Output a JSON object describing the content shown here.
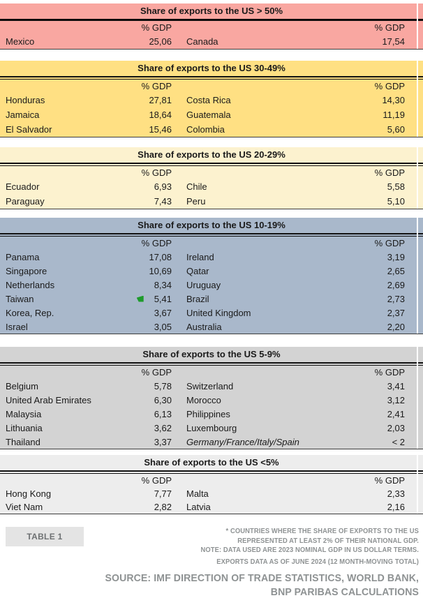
{
  "colors": {
    "band_gt50": "#F9A7A1",
    "band_30_49": "#FFE083",
    "band_20_29": "#FCF2CF",
    "band_10_19": "#A9B8CB",
    "band_5_9": "#D3D3D3",
    "band_lt5": "#EDEDED",
    "footer_text": "#8E9293",
    "badge_bg": "#E4E4E4",
    "flag_green": "#1E9B2C"
  },
  "sections": [
    {
      "title": "Share of exports to the US > 50%",
      "color": "#F9A7A1",
      "divider": "single",
      "col_header": "% GDP",
      "rows": [
        {
          "country1": "Mexico",
          "value1": "25,06",
          "country2": "Canada",
          "value2": "17,54"
        }
      ]
    },
    {
      "title": "Share of exports to the US 30-49%",
      "color": "#FFE083",
      "divider": "double",
      "col_header": "% GDP",
      "rows": [
        {
          "country1": "Honduras",
          "value1": "27,81",
          "country2": "Costa Rica",
          "value2": "14,30"
        },
        {
          "country1": "Jamaica",
          "value1": "18,64",
          "country2": "Guatemala",
          "value2": "11,19"
        },
        {
          "country1": "El Salvador",
          "value1": "15,46",
          "country2": "Colombia",
          "value2": "5,60"
        }
      ]
    },
    {
      "title": "Share of exports to the US 20-29%",
      "color": "#FCF2CF",
      "divider": "double",
      "col_header": "% GDP",
      "rows": [
        {
          "country1": "Ecuador",
          "value1": "6,93",
          "country2": "Chile",
          "value2": "5,58"
        },
        {
          "country1": "Paraguay",
          "value1": "7,43",
          "country2": "Peru",
          "value2": "5,10"
        }
      ]
    },
    {
      "title": "Share of exports to the US 10-19%",
      "color": "#A9B8CB",
      "divider": "double",
      "col_header": "% GDP",
      "rows": [
        {
          "country1": "Panama",
          "value1": "17,08",
          "country2": "Ireland",
          "value2": "3,19"
        },
        {
          "country1": "Singapore",
          "value1": "10,69",
          "country2": "Qatar",
          "value2": "2,65"
        },
        {
          "country1": "Netherlands",
          "value1": "8,34",
          "country2": "Uruguay",
          "value2": "2,69"
        },
        {
          "country1": "Taiwan",
          "value1": "5,41",
          "country2": "Brazil",
          "value2": "2,73",
          "flag1": true
        },
        {
          "country1": "Korea, Rep.",
          "value1": "3,67",
          "country2": "United Kingdom",
          "value2": "2,37"
        },
        {
          "country1": "Israel",
          "value1": "3,05",
          "country2": "Australia",
          "value2": "2,20"
        }
      ]
    },
    {
      "title": "Share of exports to the US 5-9%",
      "color": "#D3D3D3",
      "divider": "double",
      "col_header": "% GDP",
      "rows": [
        {
          "country1": "Belgium",
          "value1": "5,78",
          "country2": "Switzerland",
          "value2": "3,41"
        },
        {
          "country1": "United Arab Emirates",
          "value1": "6,30",
          "country2": "Morocco",
          "value2": "3,12"
        },
        {
          "country1": "Malaysia",
          "value1": "6,13",
          "country2": "Philippines",
          "value2": "2,41"
        },
        {
          "country1": "Lithuania",
          "value1": "3,62",
          "country2": "Luxembourg",
          "value2": "2,03"
        },
        {
          "country1": "Thailand",
          "value1": "3,37",
          "country2": "Germany/France/Italy/Spain",
          "value2": "< 2",
          "italic2": true
        }
      ]
    },
    {
      "title": "Share of exports to the US <5%",
      "color": "#EDEDED",
      "divider": "double",
      "col_header": "% GDP",
      "rows": [
        {
          "country1": "Hong Kong",
          "value1": "7,77",
          "country2": "Malta",
          "value2": "2,33"
        },
        {
          "country1": "Viet Nam",
          "value1": "2,82",
          "country2": "Latvia",
          "value2": "2,16"
        }
      ]
    }
  ],
  "footer": {
    "table_label": "TABLE 1",
    "notes": [
      "* COUNTRIES WHERE THE SHARE OF EXPORTS TO THE US",
      "REPRESENTED AT LEAST 2% OF THEIR NATIONAL GDP.",
      "NOTE: DATA USED ARE 2023 NOMINAL GDP IN US DOLLAR TERMS.",
      "EXPORTS DATA AS OF JUNE 2024 (12 MONTH-MOVING TOTAL)"
    ],
    "source_lines": [
      "SOURCE: IMF DIRECTION OF TRADE STATISTICS, WORLD BANK,",
      "BNP PARIBAS CALCULATIONS"
    ]
  },
  "chart_data": {
    "type": "table",
    "title": "Share of exports to the US by band",
    "unit": "% GDP",
    "bands": [
      {
        "band": "> 50%",
        "entries": [
          {
            "country": "Mexico",
            "value": 25.06
          },
          {
            "country": "Canada",
            "value": 17.54
          }
        ]
      },
      {
        "band": "30-49%",
        "entries": [
          {
            "country": "Honduras",
            "value": 27.81
          },
          {
            "country": "Costa Rica",
            "value": 14.3
          },
          {
            "country": "Jamaica",
            "value": 18.64
          },
          {
            "country": "Guatemala",
            "value": 11.19
          },
          {
            "country": "El Salvador",
            "value": 15.46
          },
          {
            "country": "Colombia",
            "value": 5.6
          }
        ]
      },
      {
        "band": "20-29%",
        "entries": [
          {
            "country": "Ecuador",
            "value": 6.93
          },
          {
            "country": "Chile",
            "value": 5.58
          },
          {
            "country": "Paraguay",
            "value": 7.43
          },
          {
            "country": "Peru",
            "value": 5.1
          }
        ]
      },
      {
        "band": "10-19%",
        "entries": [
          {
            "country": "Panama",
            "value": 17.08
          },
          {
            "country": "Ireland",
            "value": 3.19
          },
          {
            "country": "Singapore",
            "value": 10.69
          },
          {
            "country": "Qatar",
            "value": 2.65
          },
          {
            "country": "Netherlands",
            "value": 8.34
          },
          {
            "country": "Uruguay",
            "value": 2.69
          },
          {
            "country": "Taiwan",
            "value": 5.41
          },
          {
            "country": "Brazil",
            "value": 2.73
          },
          {
            "country": "Korea, Rep.",
            "value": 3.67
          },
          {
            "country": "United Kingdom",
            "value": 2.37
          },
          {
            "country": "Israel",
            "value": 3.05
          },
          {
            "country": "Australia",
            "value": 2.2
          }
        ]
      },
      {
        "band": "5-9%",
        "entries": [
          {
            "country": "Belgium",
            "value": 5.78
          },
          {
            "country": "Switzerland",
            "value": 3.41
          },
          {
            "country": "United Arab Emirates",
            "value": 6.3
          },
          {
            "country": "Morocco",
            "value": 3.12
          },
          {
            "country": "Malaysia",
            "value": 6.13
          },
          {
            "country": "Philippines",
            "value": 2.41
          },
          {
            "country": "Lithuania",
            "value": 3.62
          },
          {
            "country": "Luxembourg",
            "value": 2.03
          },
          {
            "country": "Thailand",
            "value": 3.37
          },
          {
            "country": "Germany/France/Italy/Spain",
            "value": "< 2"
          }
        ]
      },
      {
        "band": "<5%",
        "entries": [
          {
            "country": "Hong Kong",
            "value": 7.77
          },
          {
            "country": "Malta",
            "value": 2.33
          },
          {
            "country": "Viet Nam",
            "value": 2.82
          },
          {
            "country": "Latvia",
            "value": 2.16
          }
        ]
      }
    ]
  }
}
